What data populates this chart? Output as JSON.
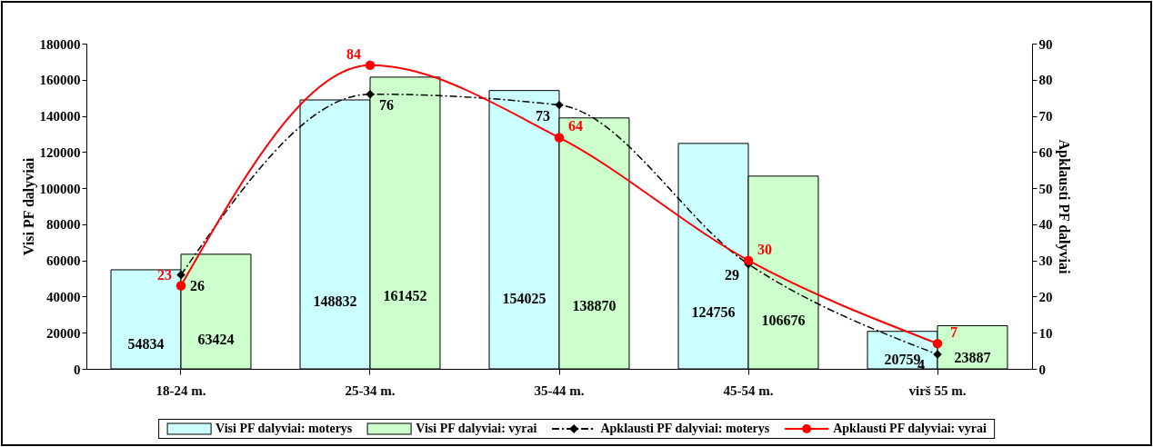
{
  "chart_data": {
    "type": "bar",
    "ylabel": "Visi PF dalyviai",
    "y2label": "Apklausti PF dalyviai",
    "categories": [
      "18-24 m.",
      "25-34 m.",
      "35-44 m.",
      "45-54 m.",
      "virš 55 m."
    ],
    "series": [
      {
        "name": "Visi PF dalyviai: moterys",
        "color": "#ccffff",
        "values": [
          54834,
          148832,
          154025,
          124756,
          20759
        ]
      },
      {
        "name": "Visi PF dalyviai: vyrai",
        "color": "#ccffcc",
        "values": [
          63424,
          161452,
          138870,
          106676,
          23887
        ]
      },
      {
        "name": "Apklausti PF dalyviai: moterys",
        "type": "line",
        "axis": "y2",
        "color": "#000000",
        "marker": "diamond",
        "line_style": "dashed",
        "values": [
          26,
          76,
          73,
          29,
          4
        ]
      },
      {
        "name": "Apklausti PF dalyviai: vyrai",
        "type": "line",
        "axis": "y2",
        "color": "#ff0000",
        "marker": "circle",
        "line_style": "solid",
        "values": [
          23,
          84,
          64,
          30,
          7
        ]
      }
    ],
    "ylim": [
      0,
      180000
    ],
    "yticks": [
      0,
      20000,
      40000,
      60000,
      80000,
      100000,
      120000,
      140000,
      160000,
      180000
    ],
    "y2lim": [
      0,
      90
    ],
    "y2ticks": [
      0,
      10,
      20,
      30,
      40,
      50,
      60,
      70,
      80,
      90
    ],
    "data_labels": true,
    "legend": "bottom"
  }
}
